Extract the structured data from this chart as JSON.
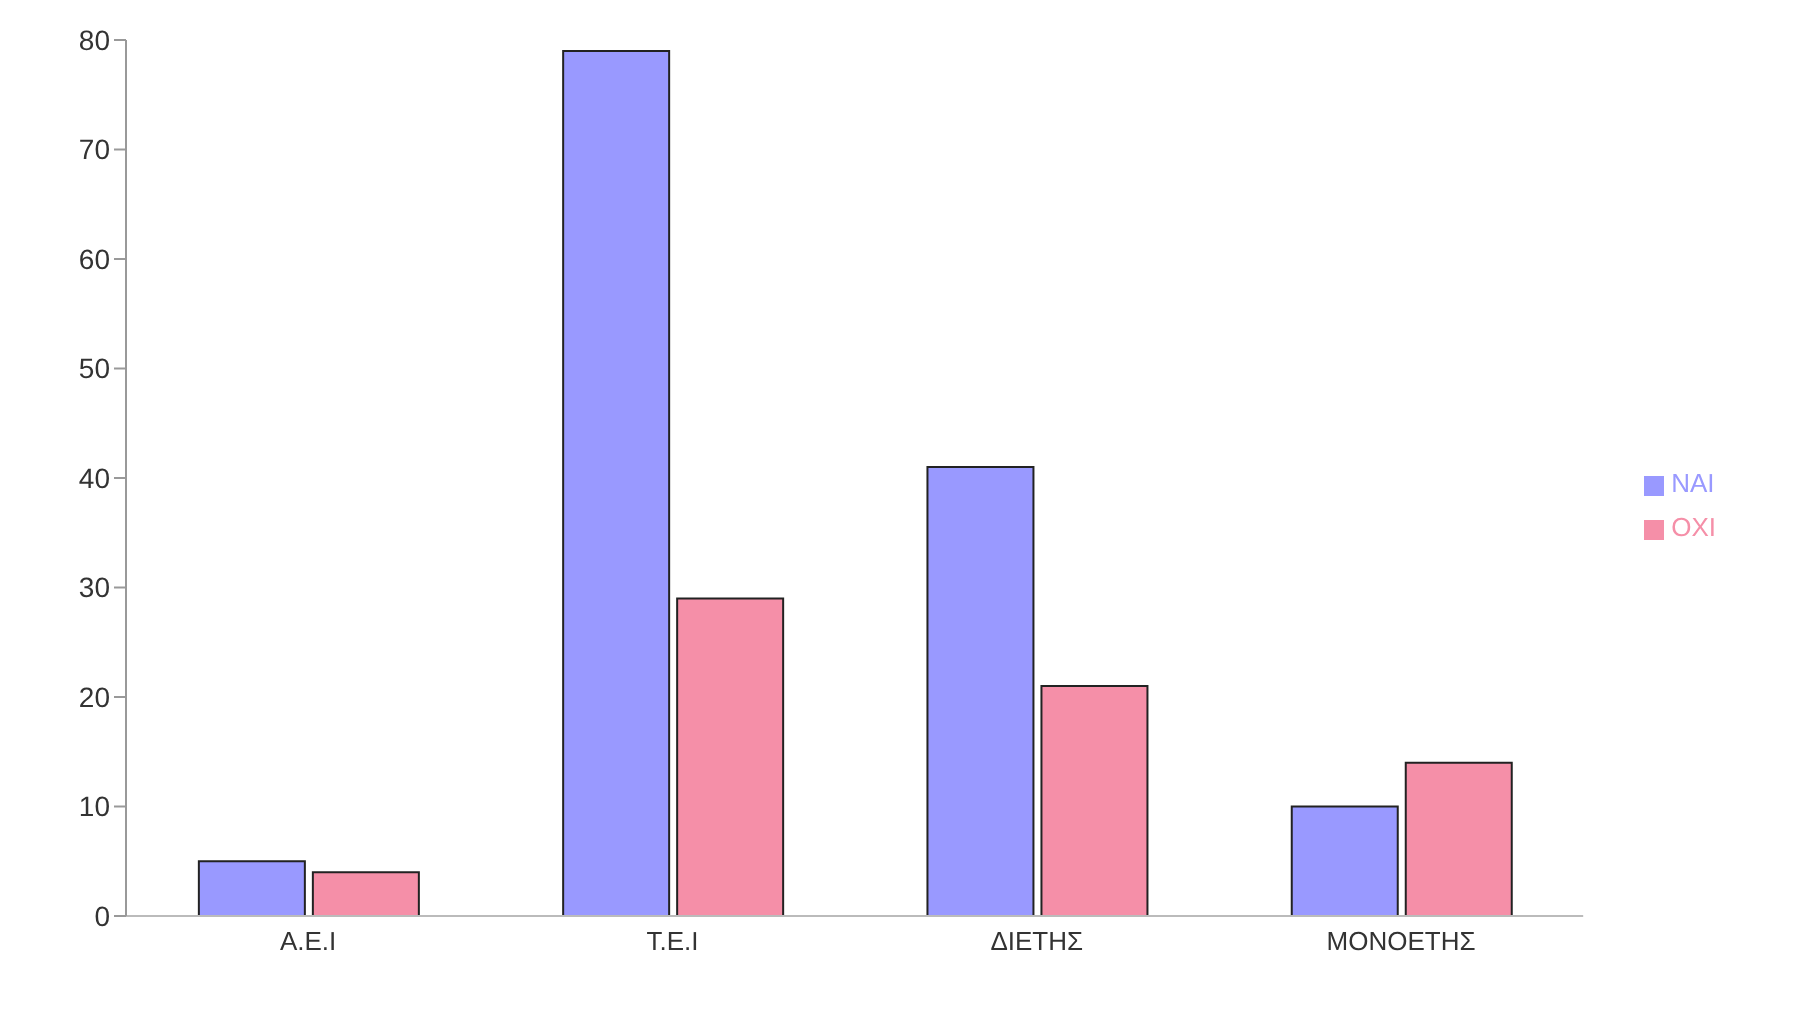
{
  "chart_data": {
    "type": "bar",
    "categories": [
      "Α.Ε.Ι",
      "Τ.Ε.Ι",
      "ΔΙΕΤΗΣ",
      "ΜΟΝΟΕΤΗΣ"
    ],
    "series": [
      {
        "name": "ΝΑΙ",
        "color": "#9999ff",
        "values": [
          5,
          79,
          41,
          10
        ]
      },
      {
        "name": "ΟΧΙ",
        "color": "#f58fa8",
        "values": [
          4,
          29,
          21,
          14
        ]
      }
    ],
    "ylim": [
      0,
      80
    ],
    "yticks": [
      0,
      10,
      20,
      30,
      40,
      50,
      60,
      70,
      80
    ],
    "grid": false,
    "legend": "right"
  }
}
